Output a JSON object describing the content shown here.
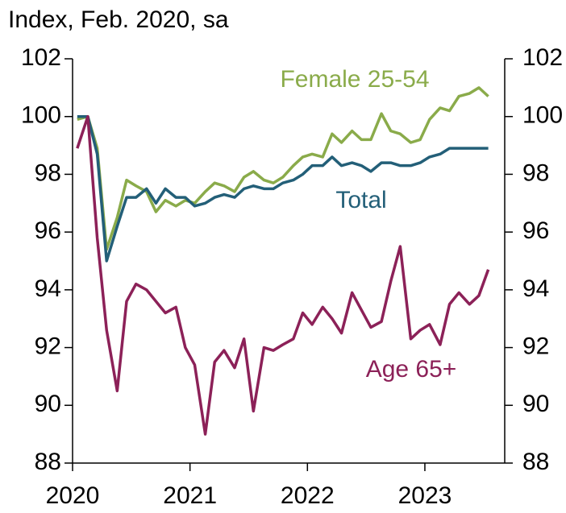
{
  "chart_data": {
    "type": "line",
    "axis_label": "Index, Feb. 2020, sa",
    "x": [
      2020.04,
      2020.13,
      2020.21,
      2020.29,
      2020.38,
      2020.46,
      2020.54,
      2020.63,
      2020.71,
      2020.79,
      2020.88,
      2020.96,
      2021.04,
      2021.13,
      2021.21,
      2021.29,
      2021.38,
      2021.46,
      2021.54,
      2021.63,
      2021.71,
      2021.79,
      2021.88,
      2021.96,
      2022.04,
      2022.13,
      2022.21,
      2022.29,
      2022.38,
      2022.46,
      2022.54,
      2022.63,
      2022.71,
      2022.79,
      2022.88,
      2022.96,
      2023.04,
      2023.13,
      2023.21,
      2023.29,
      2023.38,
      2023.46,
      2023.54
    ],
    "series": [
      {
        "name": "Female 25-54",
        "color": "#8aab4a",
        "values": [
          99.9,
          100,
          98.9,
          95.4,
          96.5,
          97.8,
          97.6,
          97.4,
          96.7,
          97.1,
          96.9,
          97.1,
          97.0,
          97.4,
          97.7,
          97.6,
          97.4,
          97.9,
          98.1,
          97.8,
          97.7,
          97.9,
          98.3,
          98.6,
          98.7,
          98.6,
          99.4,
          99.1,
          99.5,
          99.2,
          99.2,
          100.1,
          99.5,
          99.4,
          99.1,
          99.2,
          99.9,
          100.3,
          100.2,
          100.7,
          100.8,
          101.0,
          100.7
        ]
      },
      {
        "name": "Total",
        "color": "#235f78",
        "values": [
          100,
          100,
          98.7,
          95.0,
          96.2,
          97.2,
          97.2,
          97.5,
          97.0,
          97.5,
          97.2,
          97.2,
          96.9,
          97.0,
          97.2,
          97.3,
          97.2,
          97.5,
          97.6,
          97.5,
          97.5,
          97.7,
          97.8,
          98.0,
          98.3,
          98.3,
          98.6,
          98.3,
          98.4,
          98.3,
          98.1,
          98.4,
          98.4,
          98.3,
          98.3,
          98.4,
          98.6,
          98.7,
          98.9,
          98.9,
          98.9,
          98.9,
          98.9
        ]
      },
      {
        "name": "Age 65+",
        "color": "#8c2158",
        "values": [
          98.9,
          100,
          95.8,
          92.6,
          90.5,
          93.6,
          94.2,
          94.0,
          93.6,
          93.2,
          93.4,
          92.0,
          91.4,
          89.0,
          91.5,
          91.9,
          91.3,
          92.3,
          89.8,
          92.0,
          91.9,
          92.1,
          92.3,
          93.2,
          92.8,
          93.4,
          93.0,
          92.5,
          93.9,
          93.3,
          92.7,
          92.9,
          94.3,
          95.5,
          92.3,
          92.6,
          92.8,
          92.1,
          93.5,
          93.9,
          93.5,
          93.8,
          94.7
        ]
      }
    ],
    "xlim": [
      2020,
      2023.68
    ],
    "xticks": [
      2020,
      2021,
      2022,
      2023
    ],
    "ylim": [
      88,
      102
    ],
    "yticks": [
      88,
      90,
      92,
      94,
      96,
      98,
      100,
      102
    ],
    "y2lim": [
      88,
      102
    ],
    "y2ticks": [
      88,
      90,
      92,
      94,
      96,
      98,
      100,
      102
    ],
    "grid": false
  }
}
